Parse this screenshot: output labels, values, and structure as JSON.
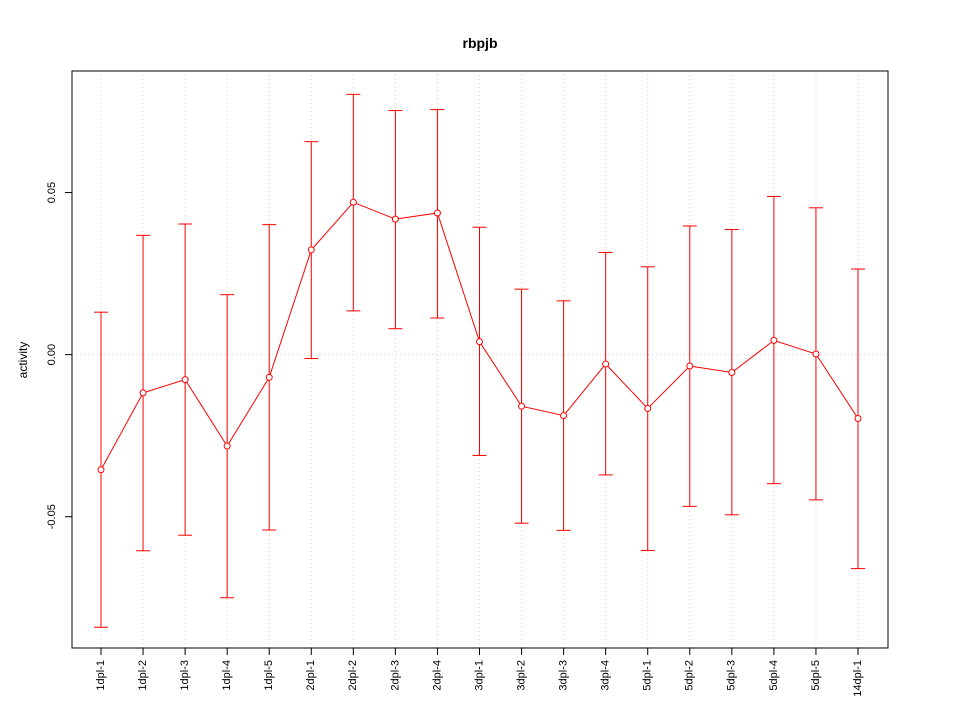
{
  "chart_data": {
    "type": "line",
    "title": "rbpjb",
    "xlabel": "",
    "ylabel": "activity",
    "categories": [
      "1dpl-1",
      "1dpl-2",
      "1dpl-3",
      "1dpl-4",
      "1dpl-5",
      "2dpl-1",
      "2dpl-2",
      "2dpl-3",
      "2dpl-4",
      "3dpl-1",
      "3dpl-2",
      "3dpl-3",
      "3dpl-4",
      "5dpl-1",
      "5dpl-2",
      "5dpl-3",
      "5dpl-4",
      "5dpl-5",
      "14dpl-1"
    ],
    "series": [
      {
        "values": [
          -0.0355,
          -0.0118,
          -0.0077,
          -0.0282,
          -0.007,
          0.0323,
          0.047,
          0.0418,
          0.0437,
          0.004,
          -0.0159,
          -0.0188,
          -0.0029,
          -0.0166,
          -0.0035,
          -0.0055,
          0.0044,
          0.0002,
          -0.0197
        ],
        "upper": [
          0.0131,
          0.0368,
          0.0403,
          0.0185,
          0.0401,
          0.0657,
          0.0803,
          0.0753,
          0.0756,
          0.0393,
          0.0202,
          0.0166,
          0.0315,
          0.0271,
          0.0397,
          0.0386,
          0.0488,
          0.0453,
          0.0264
        ],
        "lower": [
          -0.0841,
          -0.0605,
          -0.0557,
          -0.075,
          -0.0541,
          -0.0012,
          0.0135,
          0.008,
          0.0113,
          -0.0311,
          -0.052,
          -0.0542,
          -0.0371,
          -0.0604,
          -0.0468,
          -0.0494,
          -0.0398,
          -0.0448,
          -0.066
        ],
        "color": "#ff0000"
      }
    ],
    "yticks": [
      -0.05,
      0.0,
      0.05
    ],
    "ytick_labels": [
      "-0.05",
      "0.00",
      "0.05"
    ],
    "ylim": [
      -0.0905,
      0.0875
    ],
    "grid": true,
    "grid_color": "#d3d3d3",
    "axis_color": "#000000"
  }
}
